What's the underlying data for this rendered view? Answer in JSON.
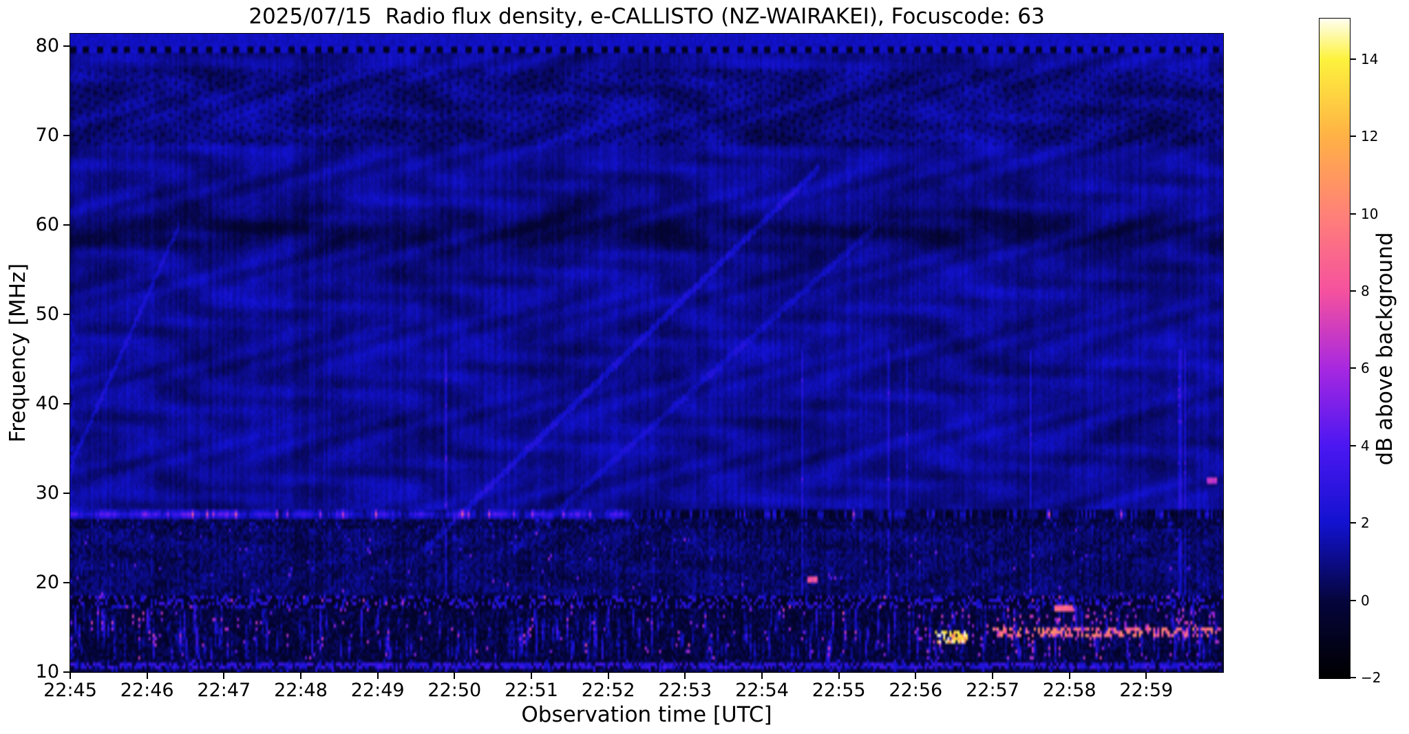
{
  "chart_data": {
    "type": "heatmap",
    "subtype": "radio-spectrogram",
    "title": "2025/07/15  Radio flux density, e-CALLISTO (NZ-WAIRAKEI), Focuscode: 63",
    "date": "2025/07/15",
    "station": "NZ-WAIRAKEI",
    "focuscode": "63",
    "xlabel": "Observation time [UTC]",
    "ylabel": "Frequency [MHz]",
    "x_ticks": [
      "22:45",
      "22:46",
      "22:47",
      "22:48",
      "22:49",
      "22:50",
      "22:51",
      "22:52",
      "22:53",
      "22:54",
      "22:55",
      "22:56",
      "22:57",
      "22:58",
      "22:59"
    ],
    "x_range": [
      "22:45:00",
      "23:00:00"
    ],
    "y_ticks": [
      80,
      70,
      60,
      50,
      40,
      30,
      20,
      10
    ],
    "y_range_mhz": [
      10.0,
      81.4
    ],
    "grid": false,
    "colorbar": {
      "label": "dB above background",
      "ticks": [
        14,
        12,
        10,
        8,
        6,
        4,
        2,
        0,
        -2
      ],
      "tick_labels": [
        "14",
        "12",
        "10",
        "8",
        "6",
        "4",
        "2",
        "0",
        "−2"
      ],
      "range_db": [
        -2,
        15.05
      ],
      "colormap_stops": [
        [
          -2,
          "#000000"
        ],
        [
          0,
          "#05053c"
        ],
        [
          2,
          "#1212cf"
        ],
        [
          4,
          "#4b17f2"
        ],
        [
          6,
          "#a728e0"
        ],
        [
          8,
          "#f5519e"
        ],
        [
          10,
          "#ff8177"
        ],
        [
          12,
          "#ffb145"
        ],
        [
          14,
          "#fdf23d"
        ],
        [
          15.05,
          "#fffef0"
        ]
      ]
    },
    "background_texture": {
      "base_level_db": 1.3,
      "dotted_dark_line_mhz": 79.8,
      "herringbone_mhz": [
        69.0,
        77.5
      ],
      "dark_smooth_band_mhz": [
        56.5,
        62.0
      ],
      "moire_waves": true,
      "description": "quiet blue background with wavy interference moire, herringbone instrument artifact 69-77 MHz, smooth darker band near 59 MHz, dotted dark line near 80 MHz"
    },
    "features": [
      {
        "name": "rfi-line",
        "kind": "rfi-band",
        "freq_mhz": [
          27.1,
          28.2
        ],
        "time": [
          "22:45:00",
          "23:00:00"
        ],
        "level_db": 4.5,
        "note": "persistent carrier near 27.6 MHz, bright with magenta bursts early, broken dark dashes after ~22:52"
      },
      {
        "name": "rfi-shadow",
        "kind": "shadow-band",
        "freq_mhz": [
          26.0,
          27.1
        ],
        "time": [
          "22:45:00",
          "23:00:00"
        ],
        "level_db": -0.5
      },
      {
        "name": "dark-band",
        "kind": "absorption-band",
        "freq_mhz": [
          17.0,
          18.6
        ],
        "time": [
          "22:45:00",
          "23:00:00"
        ],
        "level_db": -1.0,
        "note": "dark band broken by bright blue dashes"
      },
      {
        "name": "noisy-band",
        "kind": "speckle-band",
        "freq_mhz": [
          11.4,
          17.0
        ],
        "time": [
          "22:45:00",
          "23:00:00"
        ],
        "level_db": 3.0,
        "intensify_after": "22:56:00",
        "note": "broadband terrestrial noise speckle, intensifies after 22:56"
      },
      {
        "name": "bottom-line",
        "kind": "speckle-band",
        "freq_mhz": [
          10.45,
          11.1
        ],
        "time": [
          "22:45:00",
          "23:00:00"
        ],
        "level_db": 3.0
      },
      {
        "name": "yellow-burst",
        "kind": "speckle",
        "freq_mhz": [
          13.3,
          14.7
        ],
        "time": [
          "22:56:15",
          "22:56:40"
        ],
        "level_db": 12.8,
        "density": 0.65
      },
      {
        "name": "salmon-streak",
        "kind": "speckle",
        "freq_mhz": [
          14.1,
          15.0
        ],
        "time": [
          "22:57:00",
          "22:59:58"
        ],
        "level_db": 8.8,
        "density": 0.5
      },
      {
        "name": "violet-speckle-late",
        "kind": "speckle",
        "freq_mhz": [
          15.2,
          16.6
        ],
        "time": [
          "22:57:20",
          "22:59:58"
        ],
        "level_db": 6.5,
        "density": 0.08
      },
      {
        "name": "orange-dash",
        "kind": "spot",
        "freq_mhz": [
          16.95,
          17.6
        ],
        "time": [
          "22:57:49",
          "22:58:02"
        ],
        "level_db": 8.8
      },
      {
        "name": "magenta-dot",
        "kind": "spot",
        "freq_mhz": [
          20.05,
          20.6
        ],
        "time": [
          "22:54:35",
          "22:54:44"
        ],
        "level_db": 7.8
      },
      {
        "name": "pink-dot",
        "kind": "spot",
        "freq_mhz": [
          31.0,
          31.6
        ],
        "time": [
          "22:59:47",
          "22:59:55"
        ],
        "level_db": 6.8
      },
      {
        "name": "diagonal-trace-1",
        "kind": "diagonal",
        "freq_mhz": [
          23.5,
          66.5
        ],
        "time": [
          "22:49:35",
          "22:54:45"
        ],
        "level_db": 2.5
      },
      {
        "name": "diagonal-trace-2",
        "kind": "diagonal",
        "freq_mhz": [
          23.5,
          60.0
        ],
        "time": [
          "22:50:45",
          "22:55:30"
        ],
        "level_db": 2.0
      },
      {
        "name": "diagonal-trace-3",
        "kind": "diagonal",
        "freq_mhz": [
          33.0,
          60.0
        ],
        "time": [
          "22:45:00",
          "22:46:25"
        ],
        "level_db": 2.3
      }
    ]
  }
}
